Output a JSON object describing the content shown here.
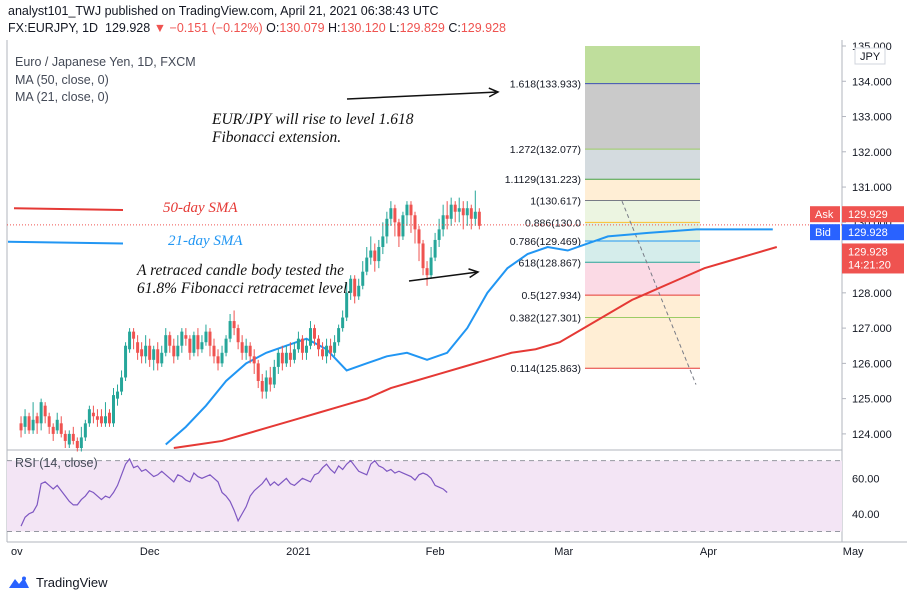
{
  "header": {
    "publisher_line": "analyst101_TWJ published on TradingView.com, April 21, 2021 06:38:43 UTC",
    "symbol": "FX:EURJPY, 1D",
    "last": "129.928",
    "change": "▼ −0.151 (−0.12%)",
    "open_label": "O:",
    "open": "130.079",
    "high_label": "H:",
    "high": "130.120",
    "low_label": "L:",
    "low": "129.829",
    "close_label": "C:",
    "close": "129.928"
  },
  "legend": {
    "title": "Euro / Japanese Yen, 1D, FXCM",
    "ma50": "MA (50, close, 0)",
    "ma21": "MA (21, close, 0)",
    "rsi": "RSI (14, close)"
  },
  "annotations": {
    "fib_target": [
      "EUR/JPY will rise to level 1.618",
      "Fibonacci extension."
    ],
    "retrace": [
      "A retraced candle body tested the",
      "61.8% Fibonacci retracemet level."
    ],
    "sma50": "50-day SMA",
    "sma21": "21-day SMA"
  },
  "price_badges": {
    "ask_label": "Ask",
    "ask": "129.929",
    "bid_label": "Bid",
    "bid": "129.928",
    "last": "129.928",
    "countdown": "14:21:20",
    "currency": "JPY"
  },
  "colors": {
    "up": "#26a69a",
    "down": "#ef5350",
    "ma50": "#e53935",
    "ma21": "#2196f3",
    "rsi_line": "#7e57c2",
    "rsi_band": "#f3e5f5",
    "fib_levels_text": "#131722"
  },
  "footer": {
    "brand": "TradingView",
    "logo": "tradingview-logo-icon"
  },
  "chart_data": [
    {
      "type": "candlestick",
      "title": "Euro / Japanese Yen, 1D, FXCM",
      "ylim": [
        123.6,
        135.0
      ],
      "y_ticks": [
        "124.000",
        "125.000",
        "126.000",
        "127.000",
        "128.000",
        "129.000",
        "130.000",
        "131.000",
        "132.000",
        "133.000",
        "134.000",
        "135.000"
      ],
      "x_ticks": [
        "ov",
        "Dec",
        "2021",
        "Feb",
        "Mar",
        "Apr",
        "May"
      ],
      "x_tick_days": [
        0,
        34,
        71,
        105,
        137,
        173,
        209
      ],
      "date_start_label": "Nov",
      "candles": [
        [
          124.3,
          124.1,
          124.5,
          123.9
        ],
        [
          124.2,
          124.5,
          124.7,
          124.0
        ],
        [
          124.5,
          124.1,
          124.6,
          124.0
        ],
        [
          124.1,
          124.4,
          124.9,
          124.0
        ],
        [
          124.5,
          124.3,
          124.6,
          124.0
        ],
        [
          124.3,
          124.9,
          125.0,
          124.1
        ],
        [
          124.8,
          124.5,
          124.9,
          124.3
        ],
        [
          124.5,
          124.2,
          124.6,
          124.0
        ],
        [
          124.2,
          124.0,
          124.3,
          123.8
        ],
        [
          124.1,
          124.4,
          124.6,
          124.0
        ],
        [
          124.3,
          124.0,
          124.5,
          123.9
        ],
        [
          124.0,
          123.8,
          124.1,
          123.6
        ],
        [
          123.7,
          124.0,
          124.1,
          123.6
        ],
        [
          124.0,
          123.8,
          124.2,
          123.7
        ],
        [
          123.8,
          123.6,
          123.9,
          123.5
        ],
        [
          123.6,
          123.9,
          124.2,
          123.5
        ],
        [
          123.9,
          124.3,
          124.4,
          123.8
        ],
        [
          124.3,
          124.7,
          124.8,
          124.2
        ],
        [
          124.6,
          124.5,
          124.8,
          124.3
        ],
        [
          124.5,
          124.4,
          124.7,
          124.2
        ],
        [
          124.5,
          124.3,
          124.7,
          124.2
        ],
        [
          124.3,
          124.5,
          124.9,
          124.2
        ],
        [
          124.6,
          124.3,
          124.7,
          124.2
        ],
        [
          124.3,
          125.1,
          125.3,
          124.2
        ],
        [
          125.0,
          125.2,
          125.4,
          124.8
        ],
        [
          125.2,
          125.6,
          125.8,
          125.1
        ],
        [
          125.6,
          126.5,
          126.6,
          125.5
        ],
        [
          126.4,
          126.9,
          127.0,
          126.3
        ],
        [
          126.9,
          126.7,
          127.0,
          126.4
        ],
        [
          126.6,
          126.3,
          126.8,
          126.1
        ],
        [
          126.4,
          126.2,
          126.6,
          126.0
        ],
        [
          126.2,
          126.5,
          126.8,
          126.0
        ],
        [
          126.5,
          126.1,
          126.7,
          125.9
        ],
        [
          126.1,
          126.4,
          126.5,
          125.8
        ],
        [
          126.4,
          126.0,
          126.6,
          125.8
        ],
        [
          126.0,
          126.3,
          126.5,
          125.9
        ],
        [
          126.3,
          126.8,
          127.0,
          126.2
        ],
        [
          126.8,
          126.5,
          126.9,
          126.3
        ],
        [
          126.5,
          126.2,
          126.7,
          126.0
        ],
        [
          126.2,
          126.5,
          126.8,
          126.1
        ],
        [
          126.5,
          126.9,
          127.0,
          126.3
        ],
        [
          126.8,
          126.7,
          127.0,
          126.5
        ],
        [
          126.7,
          126.3,
          126.8,
          126.1
        ],
        [
          126.3,
          126.8,
          126.9,
          126.2
        ],
        [
          126.8,
          126.4,
          127.0,
          126.2
        ],
        [
          126.4,
          126.6,
          126.8,
          126.3
        ],
        [
          126.6,
          126.9,
          127.1,
          126.5
        ],
        [
          126.9,
          126.5,
          127.0,
          126.2
        ],
        [
          126.5,
          126.2,
          126.7,
          126.0
        ],
        [
          126.2,
          126.0,
          126.4,
          125.8
        ],
        [
          126.0,
          126.3,
          126.5,
          125.9
        ],
        [
          126.3,
          126.7,
          126.8,
          126.2
        ],
        [
          126.7,
          127.2,
          127.4,
          126.6
        ],
        [
          127.2,
          127.0,
          127.5,
          126.8
        ],
        [
          127.0,
          126.6,
          127.1,
          126.4
        ],
        [
          126.6,
          126.3,
          126.8,
          126.1
        ],
        [
          126.3,
          126.5,
          126.7,
          126.1
        ],
        [
          126.5,
          126.2,
          126.6,
          126.0
        ],
        [
          126.2,
          126.0,
          126.4,
          125.7
        ],
        [
          126.0,
          125.5,
          126.1,
          125.3
        ],
        [
          125.5,
          125.2,
          125.7,
          125.0
        ],
        [
          125.2,
          125.6,
          125.8,
          125.0
        ],
        [
          125.6,
          125.4,
          125.9,
          125.2
        ],
        [
          125.4,
          125.9,
          126.1,
          125.3
        ],
        [
          125.9,
          126.3,
          126.4,
          125.7
        ],
        [
          126.3,
          126.0,
          126.5,
          125.8
        ],
        [
          126.0,
          126.3,
          126.5,
          125.9
        ],
        [
          126.3,
          126.1,
          126.6,
          125.9
        ],
        [
          126.1,
          126.4,
          126.6,
          126.0
        ],
        [
          126.4,
          126.7,
          126.9,
          126.3
        ],
        [
          126.7,
          126.3,
          126.8,
          126.1
        ],
        [
          126.3,
          126.5,
          126.7,
          126.1
        ],
        [
          126.5,
          127.0,
          127.2,
          126.4
        ],
        [
          127.0,
          126.7,
          127.1,
          126.5
        ],
        [
          126.7,
          126.4,
          126.8,
          126.2
        ],
        [
          126.4,
          126.2,
          126.6,
          126.1
        ],
        [
          126.2,
          126.5,
          126.7,
          126.0
        ],
        [
          126.5,
          126.3,
          126.7,
          126.1
        ],
        [
          126.3,
          126.6,
          126.8,
          126.2
        ],
        [
          126.6,
          127.0,
          127.1,
          126.5
        ],
        [
          127.0,
          127.3,
          127.5,
          126.9
        ],
        [
          127.3,
          128.0,
          128.3,
          127.2
        ],
        [
          128.0,
          128.4,
          128.5,
          127.8
        ],
        [
          128.4,
          127.9,
          128.5,
          127.7
        ],
        [
          127.9,
          128.2,
          128.4,
          127.8
        ],
        [
          128.2,
          128.6,
          128.9,
          128.1
        ],
        [
          128.6,
          129.0,
          129.3,
          128.5
        ],
        [
          129.0,
          129.2,
          129.6,
          128.8
        ],
        [
          129.2,
          128.9,
          129.4,
          128.6
        ],
        [
          128.9,
          129.3,
          129.5,
          128.7
        ],
        [
          129.3,
          129.6,
          130.0,
          129.1
        ],
        [
          129.6,
          130.1,
          130.3,
          129.4
        ],
        [
          130.1,
          130.4,
          130.6,
          129.9
        ],
        [
          130.4,
          130.0,
          130.5,
          129.6
        ],
        [
          130.0,
          129.6,
          130.1,
          129.3
        ],
        [
          129.6,
          130.2,
          130.3,
          129.5
        ],
        [
          130.2,
          130.5,
          130.6,
          129.9
        ],
        [
          130.5,
          130.2,
          130.6,
          129.7
        ],
        [
          130.2,
          129.8,
          130.3,
          129.4
        ],
        [
          129.8,
          129.4,
          129.9,
          128.9
        ],
        [
          129.4,
          128.7,
          129.5,
          128.5
        ],
        [
          128.7,
          128.5,
          128.9,
          128.2
        ],
        [
          128.5,
          129.0,
          129.3,
          128.4
        ],
        [
          129.0,
          129.5,
          129.7,
          128.9
        ],
        [
          129.5,
          129.8,
          130.1,
          129.3
        ],
        [
          129.8,
          130.2,
          130.5,
          129.6
        ],
        [
          130.2,
          130.1,
          130.6,
          129.8
        ],
        [
          130.1,
          130.5,
          130.7,
          129.9
        ],
        [
          130.5,
          130.3,
          130.6,
          130.0
        ],
        [
          130.3,
          130.4,
          130.7,
          130.0
        ],
        [
          130.4,
          130.2,
          130.6,
          129.8
        ],
        [
          130.2,
          130.4,
          130.6,
          129.9
        ],
        [
          130.4,
          130.1,
          130.5,
          129.8
        ],
        [
          130.1,
          130.3,
          130.9,
          129.9
        ],
        [
          130.3,
          129.9,
          130.4,
          129.8
        ]
      ],
      "fibonacci": [
        {
          "label": "1.618(133.933)",
          "value": 133.933,
          "color": "#3f51b5"
        },
        {
          "label": "1.272(132.077)",
          "value": 132.077,
          "color": "#9ccc65"
        },
        {
          "label": "1.1129(131.223)",
          "value": 131.223,
          "color": "#43a047"
        },
        {
          "label": "1(130.617)",
          "value": 130.617,
          "color": "#787b86"
        },
        {
          "label": "0.886(130.0",
          "value": 130.0,
          "color": "#fbc02d"
        },
        {
          "label": "0.786(129.469)",
          "value": 129.469,
          "color": "#2196f3"
        },
        {
          "label": "618(128.867)",
          "value": 128.867,
          "color": "#26a69a"
        },
        {
          "label": "0.5(127.934)",
          "value": 127.934,
          "color": "#e53935"
        },
        {
          "label": "0.382(127.301)",
          "value": 127.301,
          "color": "#9ccc65"
        },
        {
          "label": "0.114(125.863)",
          "value": 125.863,
          "color": "#e53935"
        }
      ],
      "fib_zone_top": 135.0,
      "series": [
        {
          "name": "MA (50, close, 0)",
          "values": [
            123.6,
            123.7,
            123.8,
            124.0,
            124.2,
            124.4,
            124.6,
            124.8,
            125.0,
            125.3,
            125.5,
            125.7,
            125.9,
            126.1,
            126.3,
            126.4,
            126.6,
            127.0,
            127.4,
            127.8,
            128.1,
            128.4,
            128.7,
            128.9,
            129.1,
            129.3
          ],
          "x_days": [
            40,
            46,
            52,
            58,
            64,
            70,
            76,
            82,
            88,
            94,
            100,
            106,
            112,
            118,
            124,
            130,
            136,
            142,
            148,
            154,
            160,
            166,
            172,
            178,
            184,
            190
          ]
        },
        {
          "name": "MA (21, close, 0)",
          "values": [
            123.7,
            124.2,
            124.8,
            125.5,
            126.0,
            126.3,
            126.5,
            126.7,
            126.4,
            125.8,
            126.0,
            126.2,
            126.3,
            126.1,
            126.3,
            127.0,
            128.0,
            128.7,
            129.1,
            129.3,
            129.2,
            129.4,
            129.6,
            129.7,
            129.8,
            129.8
          ],
          "x_days": [
            38,
            43,
            48,
            53,
            58,
            63,
            68,
            73,
            78,
            83,
            88,
            93,
            98,
            103,
            108,
            113,
            118,
            123,
            128,
            133,
            138,
            143,
            148,
            158,
            170,
            189
          ]
        }
      ]
    },
    {
      "type": "line",
      "title": "RSI (14, close)",
      "ylim": [
        28,
        76
      ],
      "y_ticks": [
        "40.00",
        "60.00"
      ],
      "bands": [
        30,
        70
      ],
      "values": [
        33,
        38,
        40,
        41,
        45,
        57,
        58,
        56,
        54,
        56,
        53,
        50,
        47,
        45,
        45,
        48,
        50,
        53,
        52,
        50,
        48,
        50,
        49,
        52,
        56,
        62,
        68,
        71,
        66,
        67,
        64,
        65,
        63,
        61,
        62,
        64,
        62,
        60,
        58,
        62,
        61,
        59,
        58,
        63,
        61,
        60,
        61,
        62,
        60,
        58,
        52,
        50,
        47,
        42,
        36,
        40,
        44,
        50,
        53,
        55,
        57,
        60,
        56,
        58,
        56,
        58,
        60,
        57,
        56,
        58,
        60,
        59,
        58,
        62,
        63,
        66,
        68,
        65,
        63,
        67,
        65,
        68,
        70,
        67,
        64,
        63,
        62,
        68,
        70,
        67,
        66,
        64,
        65,
        63,
        64,
        63,
        62,
        61,
        59,
        62,
        63,
        62,
        60,
        56,
        55,
        54,
        52
      ]
    }
  ]
}
